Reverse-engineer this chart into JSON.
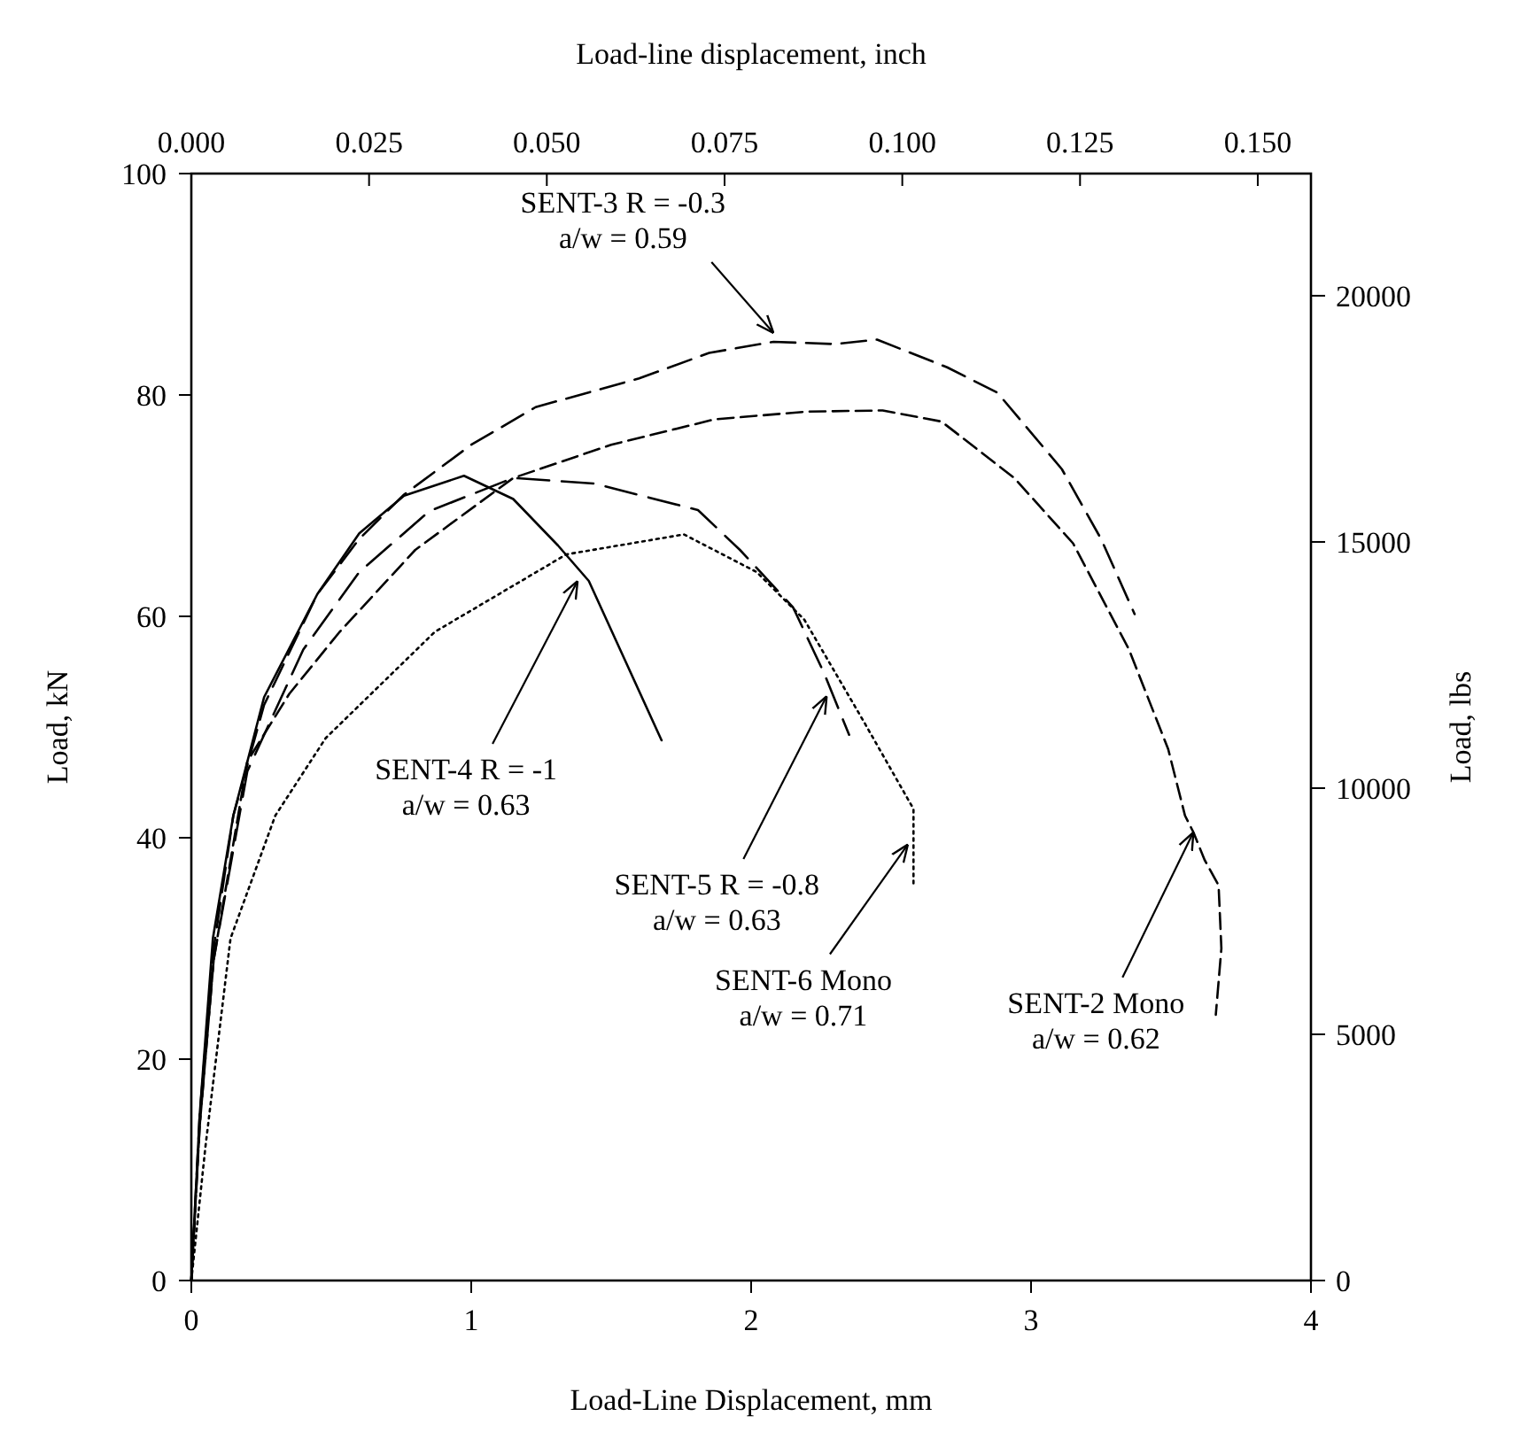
{
  "chart_data": {
    "type": "line",
    "xlabel": "Load-Line Displacement, mm",
    "ylabel": "Load, kN",
    "x2label": "Load-line displacement, inch",
    "y2label": "Load, lbs",
    "xlim": [
      0,
      4
    ],
    "xticks": [
      0,
      1,
      2,
      3,
      4
    ],
    "ylim": [
      0,
      100
    ],
    "yticks": [
      0,
      20,
      40,
      60,
      80,
      100
    ],
    "x2lim": [
      0,
      0.15748
    ],
    "x2ticks": [
      {
        "value": 0,
        "label": "0.000"
      },
      {
        "value": 0.025,
        "label": "0.025"
      },
      {
        "value": 0.05,
        "label": "0.050"
      },
      {
        "value": 0.075,
        "label": "0.075"
      },
      {
        "value": 0.1,
        "label": "0.100"
      },
      {
        "value": 0.125,
        "label": "0.125"
      },
      {
        "value": 0.15,
        "label": "0.150"
      }
    ],
    "y2lim": [
      0,
      22481
    ],
    "y2ticks": [
      0,
      5000,
      10000,
      15000,
      20000
    ],
    "grid": false,
    "series": [
      {
        "color": "#000000",
        "line_style": "solid",
        "x": [
          0,
          0.03,
          0.077,
          0.15,
          0.26,
          0.45,
          0.6,
          0.76,
          0.974,
          1.15,
          1.31,
          1.42,
          1.55,
          1.68
        ],
        "values": [
          0,
          15,
          30.9,
          42,
          52.7,
          62,
          67.5,
          70.9,
          72.7,
          70.6,
          66.4,
          63.2,
          56,
          48.8
        ]
      },
      {
        "color": "#000000",
        "line_style": "dashed",
        "x": [
          0,
          0.03,
          0.08,
          0.15,
          0.26,
          0.45,
          0.6,
          0.76,
          1.0,
          1.23,
          1.6,
          1.85,
          2.08,
          2.3,
          2.45,
          2.7,
          2.88,
          3.11,
          3.25,
          3.37
        ],
        "values": [
          0,
          15,
          30,
          42,
          52,
          62,
          67,
          71,
          75.5,
          78.9,
          81.5,
          83.8,
          84.8,
          84.6,
          85,
          82.5,
          80.2,
          73.3,
          67,
          60.2
        ]
      },
      {
        "color": "#000000",
        "line_style": "dashed",
        "x": [
          0,
          0.03,
          0.08,
          0.2,
          0.35,
          0.53,
          0.8,
          1.15,
          1.5,
          1.87,
          2.2,
          2.47,
          2.68,
          2.94,
          3.15,
          3.35,
          3.49,
          3.55,
          3.58,
          3.62,
          3.67,
          3.68,
          3.66
        ],
        "values": [
          0,
          14,
          29,
          46.9,
          53,
          58.6,
          66,
          72.5,
          75.5,
          77.8,
          78.5,
          78.6,
          77.6,
          72.5,
          66.6,
          57,
          48,
          42,
          40.5,
          38,
          35.7,
          30,
          24
        ]
      },
      {
        "color": "#000000",
        "line_style": "dashed",
        "x": [
          0,
          0.03,
          0.08,
          0.2,
          0.4,
          0.6,
          0.85,
          1.15,
          1.44,
          1.81,
          1.96,
          2.15,
          2.26,
          2.35
        ],
        "values": [
          0,
          14,
          29,
          46,
          57,
          64,
          69.5,
          72.5,
          72,
          69.6,
          66,
          60.8,
          54.9,
          49.3
        ]
      },
      {
        "color": "#000000",
        "line_style": "dotted",
        "x": [
          0,
          0.05,
          0.14,
          0.3,
          0.48,
          0.87,
          1.34,
          1.76,
          2.02,
          2.19,
          2.4,
          2.58,
          2.58
        ],
        "values": [
          0,
          12,
          30.9,
          42,
          49,
          58.6,
          65.6,
          67.4,
          64,
          59.7,
          50.6,
          42.6,
          35.7
        ]
      }
    ],
    "annotations": [
      {
        "text": "SENT-3 R = -0.3\na/w = 0.59",
        "x": 2.08,
        "y": 85.6
      },
      {
        "text": "SENT-4 R = -1\na/w = 0.63",
        "x": 1.38,
        "y": 63.2
      },
      {
        "text": "SENT-5 R = -0.8\na/w = 0.63",
        "x": 2.27,
        "y": 52.8
      },
      {
        "text": "SENT-6 Mono\na/w = 0.71",
        "x": 2.56,
        "y": 39.4
      },
      {
        "text": "SENT-2 Mono\na/w = 0.62",
        "x": 3.58,
        "y": 40.5
      }
    ]
  }
}
